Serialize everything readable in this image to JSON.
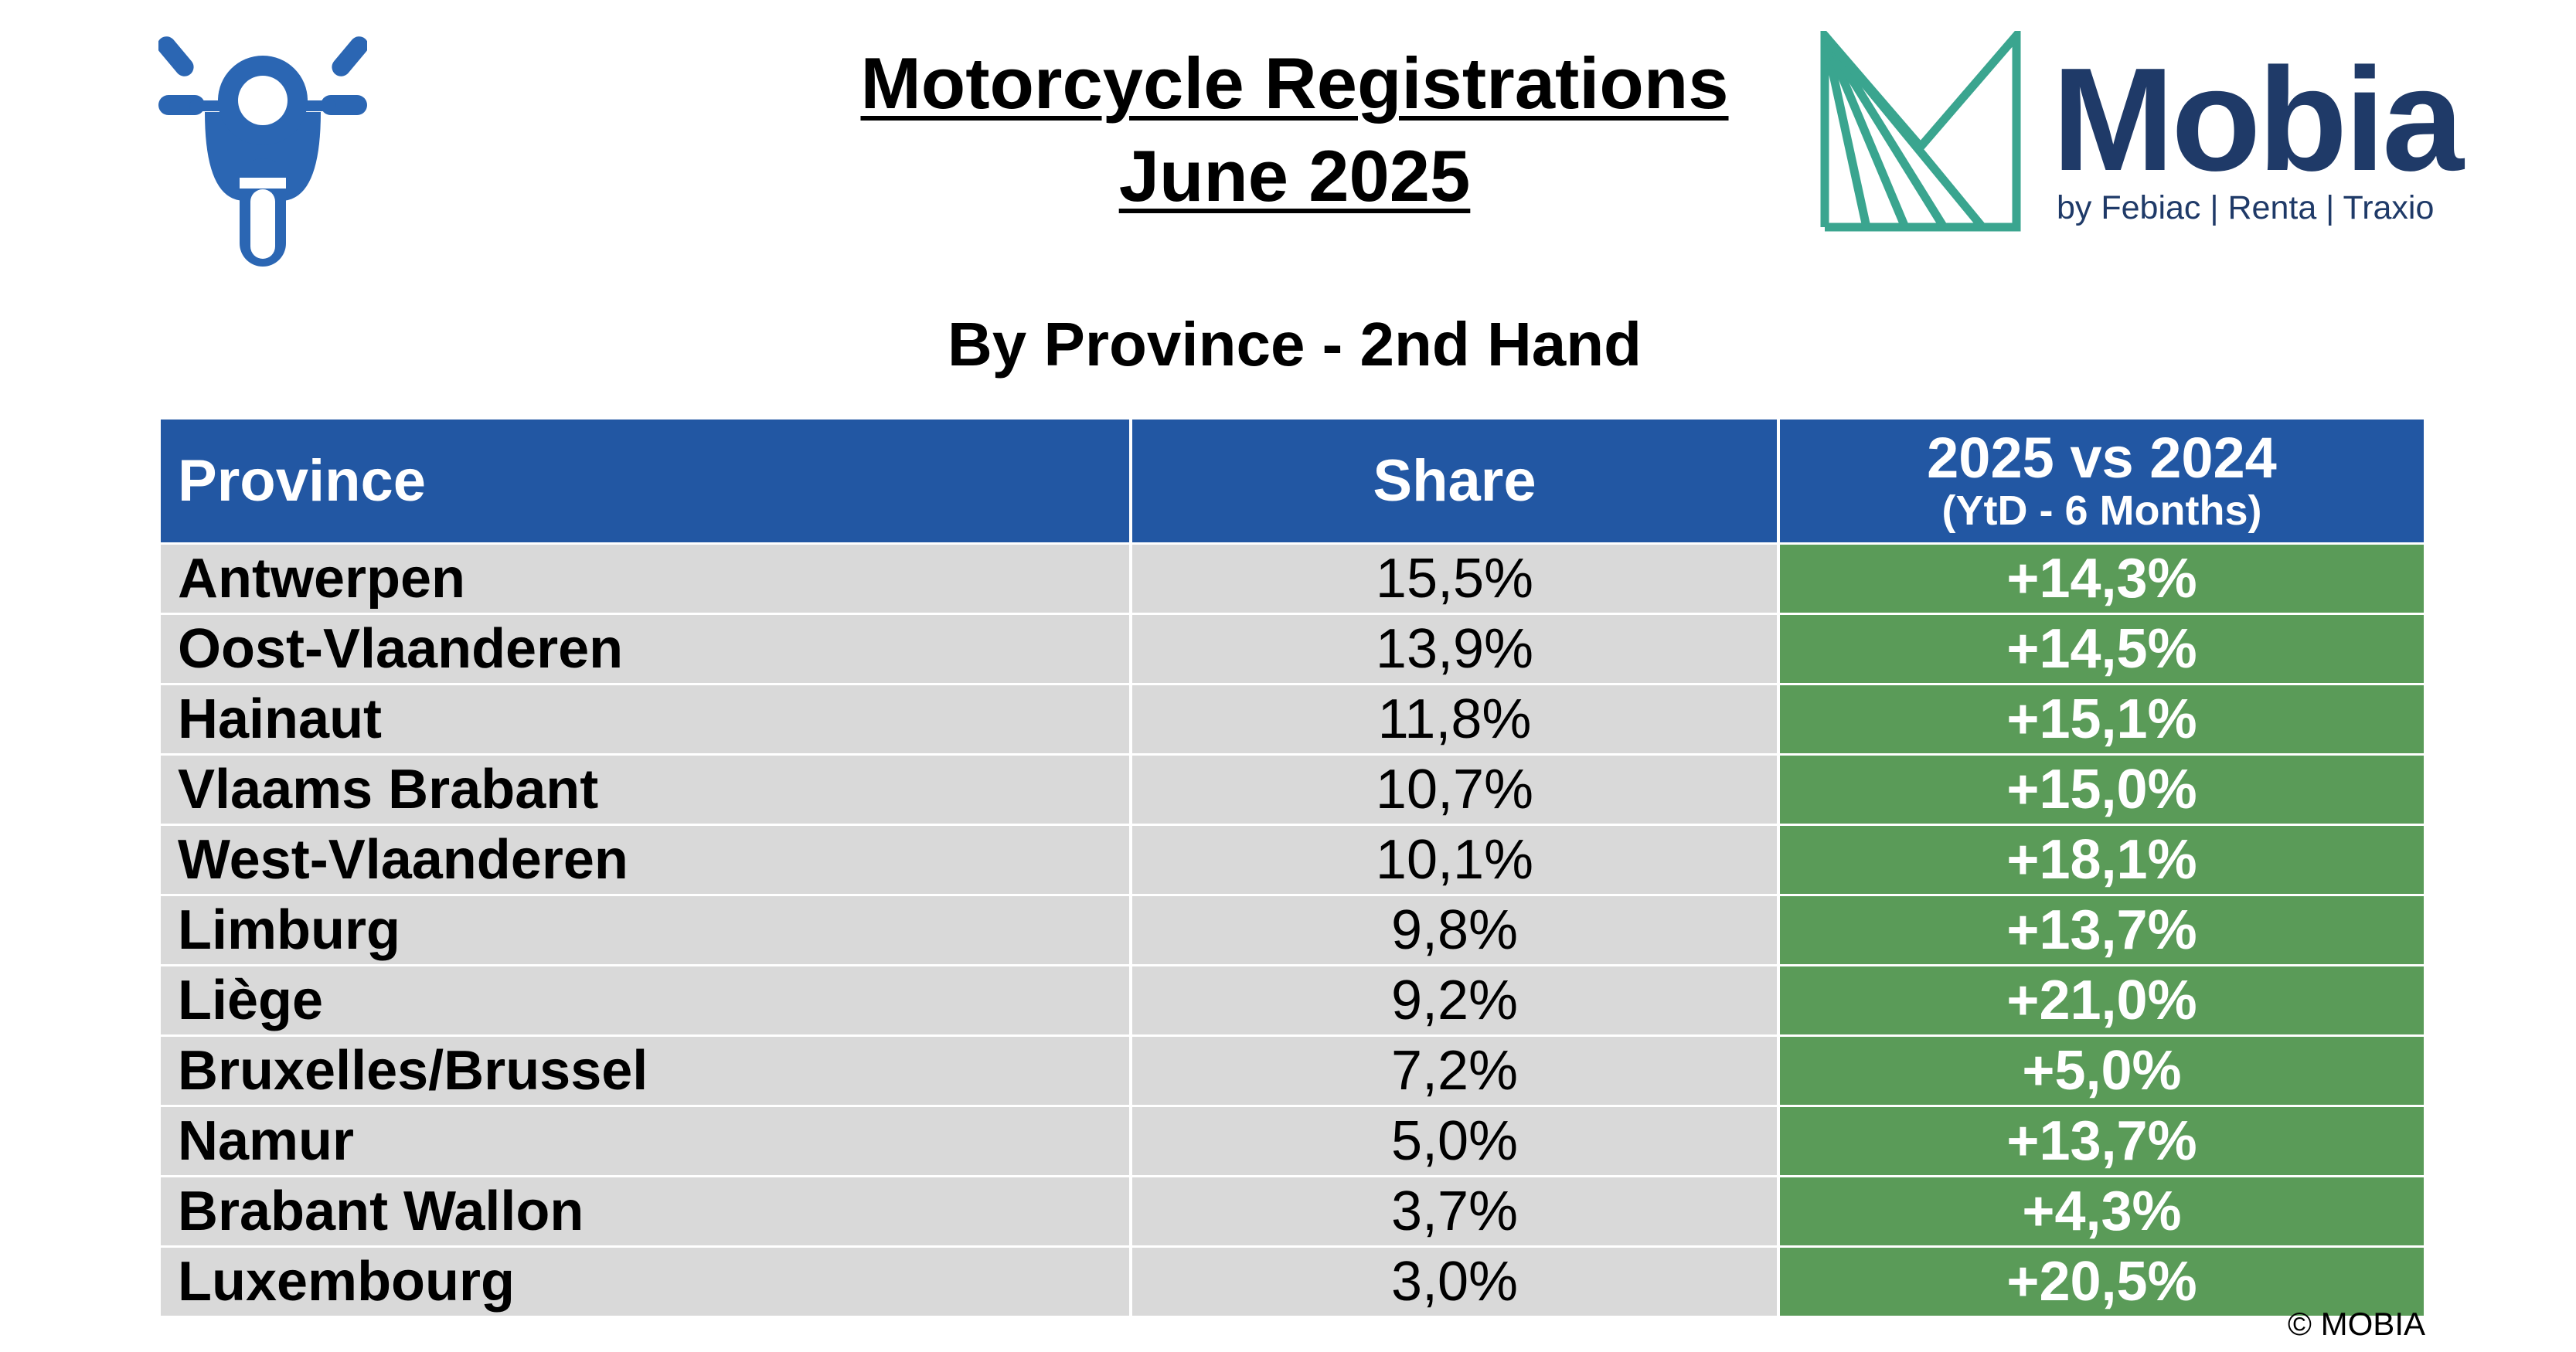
{
  "header": {
    "title_line1": "Motorcycle Registrations",
    "title_line2": "June 2025",
    "subtitle": "By Province - 2nd Hand"
  },
  "logo": {
    "name": "Mobia",
    "tagline": "by Febiac | Renta | Traxio",
    "icon": "mobia-logo-mark"
  },
  "icons": {
    "vehicle": "motorcycle-icon"
  },
  "colors": {
    "header_bg": "#2257a3",
    "row_bg": "#d9d9d9",
    "change_bg": "#5a9b58",
    "brand_navy": "#1f3a68",
    "brand_teal": "#3aa58f"
  },
  "table": {
    "columns": {
      "province": "Province",
      "share": "Share",
      "change_line1": "2025 vs 2024",
      "change_line2": "(YtD - 6 Months)"
    },
    "rows": [
      {
        "province": "Antwerpen",
        "share": "15,5%",
        "change": "+14,3%"
      },
      {
        "province": "Oost-Vlaanderen",
        "share": "13,9%",
        "change": "+14,5%"
      },
      {
        "province": "Hainaut",
        "share": "11,8%",
        "change": "+15,1%"
      },
      {
        "province": "Vlaams Brabant",
        "share": "10,7%",
        "change": "+15,0%"
      },
      {
        "province": "West-Vlaanderen",
        "share": "10,1%",
        "change": "+18,1%"
      },
      {
        "province": "Limburg",
        "share": "9,8%",
        "change": "+13,7%"
      },
      {
        "province": "Liège",
        "share": "9,2%",
        "change": "+21,0%"
      },
      {
        "province": "Bruxelles/Brussel",
        "share": "7,2%",
        "change": "+5,0%"
      },
      {
        "province": "Namur",
        "share": "5,0%",
        "change": "+13,7%"
      },
      {
        "province": "Brabant Wallon",
        "share": "3,7%",
        "change": "+4,3%"
      },
      {
        "province": "Luxembourg",
        "share": "3,0%",
        "change": "+20,5%"
      }
    ]
  },
  "footer": {
    "copyright": "© MOBIA"
  }
}
